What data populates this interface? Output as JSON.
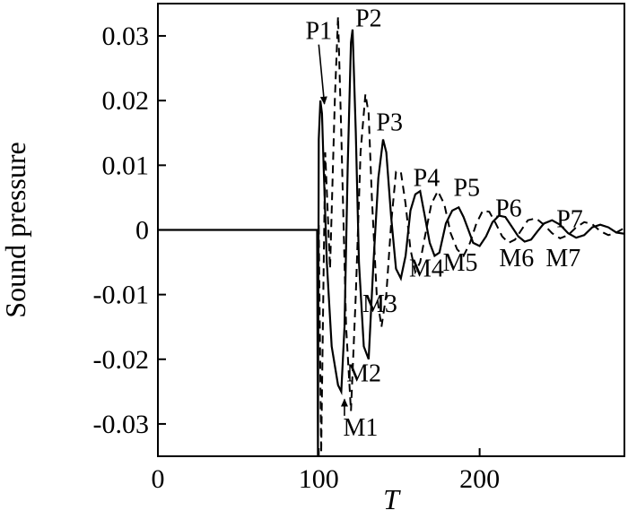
{
  "chart_data": {
    "type": "line",
    "title": "",
    "xlabel": "T",
    "ylabel": "Sound pressure",
    "xlim": [
      0,
      290
    ],
    "ylim": [
      -0.035,
      0.035
    ],
    "x_ticks": [
      0,
      100,
      200
    ],
    "x_tick_labels": [
      "0",
      "100",
      "200"
    ],
    "y_ticks": [
      0.03,
      0.02,
      0.01,
      0,
      -0.01,
      -0.02,
      -0.03
    ],
    "y_tick_labels": [
      "0.03",
      "0.02",
      "0.01",
      "0",
      "-0.01",
      "-0.02",
      "-0.03"
    ],
    "grid": false,
    "legend": "none",
    "series": [
      {
        "style": "solid",
        "x": [
          0,
          97,
          99,
          99.5,
          100,
          101,
          102,
          103,
          105,
          108,
          112,
          114,
          116,
          118,
          120,
          121,
          123,
          125,
          128,
          131,
          134,
          137,
          140,
          142,
          145,
          148,
          151,
          154,
          157,
          160,
          163,
          166,
          169,
          172,
          175,
          179,
          183,
          187,
          190,
          193,
          196,
          200,
          204,
          208,
          212,
          216,
          220,
          224,
          228,
          232,
          236,
          240,
          245,
          250,
          255,
          260,
          265,
          270,
          275,
          280,
          285,
          290
        ],
        "y": [
          0,
          0,
          0,
          -0.035,
          0.014,
          0.02,
          0.018,
          0.01,
          -0.005,
          -0.018,
          -0.024,
          -0.025,
          -0.015,
          0.01,
          0.029,
          0.031,
          0.015,
          -0.005,
          -0.018,
          -0.02,
          -0.005,
          0.008,
          0.014,
          0.012,
          0.002,
          -0.006,
          -0.0075,
          -0.004,
          0.003,
          0.0055,
          0.006,
          0.002,
          -0.002,
          -0.004,
          -0.0035,
          0.001,
          0.003,
          0.0035,
          0.002,
          0,
          -0.002,
          -0.0025,
          -0.001,
          0.0012,
          0.0022,
          0.002,
          0.0005,
          -0.001,
          -0.0018,
          -0.0015,
          -0.0002,
          0.001,
          0.0015,
          0.0008,
          -0.0005,
          -0.0012,
          -0.0008,
          0.0004,
          0.0008,
          0.0004,
          -0.0004,
          -0.0006
        ]
      },
      {
        "style": "dashed",
        "x": [
          0,
          97,
          100,
          101.5,
          104,
          107,
          110,
          112,
          114,
          117,
          120,
          123,
          126,
          129,
          131,
          133,
          136,
          139,
          142,
          145,
          148,
          151,
          154,
          157,
          160,
          163,
          166,
          170,
          174,
          178,
          182,
          186,
          190,
          194,
          198,
          202,
          206,
          210,
          214,
          218,
          222,
          226,
          230,
          235,
          240,
          245,
          250,
          255,
          260,
          265,
          270,
          275,
          280,
          285,
          290
        ],
        "y": [
          0,
          0,
          0.0005,
          -0.0345,
          0.012,
          -0.006,
          0.02,
          0.033,
          0.015,
          -0.015,
          -0.028,
          -0.01,
          0.012,
          0.021,
          0.018,
          0.005,
          -0.01,
          -0.015,
          -0.01,
          0.001,
          0.009,
          0.009,
          0.004,
          -0.003,
          -0.0065,
          -0.005,
          -0.001,
          0.004,
          0.006,
          0.004,
          -0.0005,
          -0.003,
          -0.004,
          -0.002,
          0.001,
          0.003,
          0.0028,
          0.001,
          -0.001,
          -0.002,
          -0.0015,
          0,
          0.0015,
          0.0018,
          0.0008,
          -0.0005,
          -0.0013,
          -0.0008,
          0.0004,
          0.0012,
          0.0009,
          -0.0002,
          -0.0008,
          -0.0004,
          0.0003
        ]
      }
    ],
    "annotations": [
      {
        "label": "P1",
        "x": 100,
        "y": 0.0295,
        "arrow_to_x": 103.5,
        "arrow_to_y": 0.0195
      },
      {
        "label": "P2",
        "x": 131,
        "y": 0.0315
      },
      {
        "label": "P3",
        "x": 144,
        "y": 0.0154
      },
      {
        "label": "P4",
        "x": 167,
        "y": 0.0068
      },
      {
        "label": "P5",
        "x": 192,
        "y": 0.0053
      },
      {
        "label": "P6",
        "x": 218,
        "y": 0.0021
      },
      {
        "label": "P7",
        "x": 256,
        "y": 0.0004
      },
      {
        "label": "M1",
        "x": 126,
        "y": -0.0318,
        "arrow_to_x": 116,
        "arrow_to_y": -0.0262
      },
      {
        "label": "M2",
        "x": 128,
        "y": -0.0234
      },
      {
        "label": "M3",
        "x": 138,
        "y": -0.0127
      },
      {
        "label": "M4",
        "x": 167,
        "y": -0.0072
      },
      {
        "label": "M5",
        "x": 188,
        "y": -0.0063
      },
      {
        "label": "M6",
        "x": 223,
        "y": -0.0056
      },
      {
        "label": "M7",
        "x": 252,
        "y": -0.0056
      }
    ]
  }
}
